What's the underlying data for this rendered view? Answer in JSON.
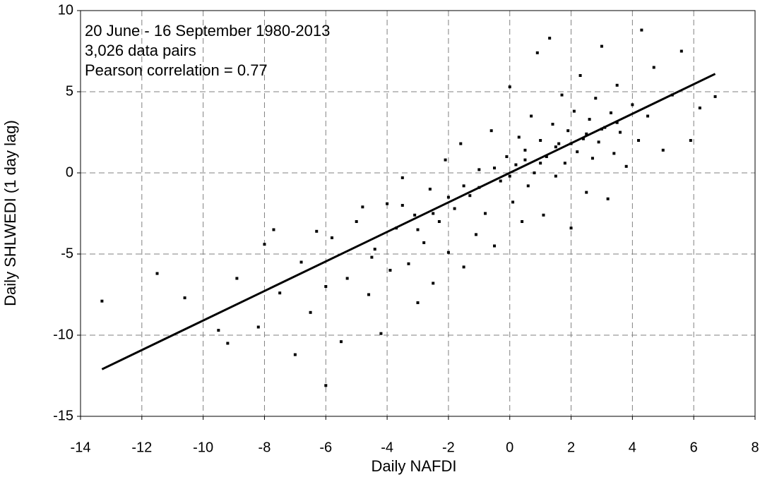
{
  "chart_data": {
    "type": "scatter",
    "annotations": [
      "20 June - 16 September 1980-2013",
      "3,026 data pairs",
      "Pearson correlation = 0.77"
    ],
    "xlabel": "Daily NAFDI",
    "ylabel": "Daily SHLWEDI (1 day lag)",
    "xlim": [
      -14,
      8
    ],
    "xticks": [
      -14,
      -12,
      -10,
      -8,
      -6,
      -4,
      -2,
      0,
      2,
      4,
      6,
      8
    ],
    "ylim": [
      -15,
      10
    ],
    "yticks": [
      -15,
      -10,
      -5,
      0,
      5,
      10
    ],
    "grid": true,
    "color": "#000000",
    "x": [
      -13.3,
      -11.5,
      -10.6,
      -9.5,
      -9.2,
      -8.9,
      -8.2,
      -8.0,
      -7.7,
      -7.5,
      -7.0,
      -6.8,
      -6.5,
      -6.3,
      -6.0,
      -6.0,
      -5.8,
      -5.5,
      -5.3,
      -5.0,
      -4.8,
      -4.6,
      -4.4,
      -4.2,
      -4.0,
      -3.9,
      -3.7,
      -3.5,
      -3.3,
      -3.1,
      -3.0,
      -2.8,
      -2.6,
      -2.5,
      -2.3,
      -2.1,
      -2.0,
      -1.8,
      -1.6,
      -1.5,
      -1.3,
      -1.1,
      -1.0,
      -0.8,
      -0.6,
      -0.5,
      -0.3,
      -0.1,
      0.0,
      0.1,
      0.2,
      0.3,
      0.4,
      0.5,
      0.6,
      0.7,
      0.8,
      0.9,
      1.0,
      1.1,
      1.2,
      1.3,
      1.4,
      1.5,
      1.6,
      1.7,
      1.8,
      1.9,
      2.0,
      2.1,
      2.2,
      2.3,
      2.4,
      2.5,
      2.6,
      2.7,
      2.8,
      2.9,
      3.0,
      3.1,
      3.2,
      3.3,
      3.4,
      3.5,
      3.6,
      3.8,
      4.0,
      4.2,
      4.3,
      4.5,
      4.7,
      5.0,
      5.3,
      5.6,
      5.9,
      6.2,
      6.7,
      -4.5,
      -3.5,
      -2.5,
      -1.5,
      -0.5,
      0.5,
      1.5,
      2.5,
      3.5,
      -3.0,
      -2.0,
      -1.0,
      0,
      1,
      2,
      3
    ],
    "y": [
      -7.9,
      -6.2,
      -7.7,
      -9.7,
      -10.5,
      -6.5,
      -9.5,
      -4.4,
      -3.5,
      -7.4,
      -11.2,
      -5.5,
      -8.6,
      -3.6,
      -13.1,
      -7.0,
      -4.0,
      -10.4,
      -6.5,
      -3.0,
      -2.1,
      -7.5,
      -4.7,
      -9.9,
      -1.9,
      -6.0,
      -3.4,
      -0.3,
      -5.6,
      -2.6,
      -8.0,
      -4.3,
      -1.0,
      -6.8,
      -3.0,
      0.8,
      -4.9,
      -2.2,
      1.8,
      -5.8,
      -1.4,
      -3.8,
      0.2,
      -2.5,
      2.6,
      -4.5,
      -0.5,
      1.0,
      5.3,
      -1.8,
      0.5,
      2.2,
      -3.0,
      1.4,
      -0.8,
      3.5,
      0.0,
      7.4,
      2.0,
      -2.6,
      1.0,
      8.3,
      3.0,
      -0.2,
      1.8,
      4.8,
      0.6,
      2.6,
      -3.4,
      3.8,
      1.3,
      6.0,
      2.1,
      -1.2,
      3.3,
      0.9,
      4.6,
      1.9,
      7.8,
      2.8,
      -1.6,
      3.7,
      1.2,
      5.4,
      2.5,
      0.4,
      4.2,
      2.0,
      8.8,
      3.5,
      6.5,
      1.4,
      4.8,
      7.5,
      2.0,
      4.0,
      4.7,
      -5.2,
      -2.0,
      -2.5,
      -0.8,
      0.3,
      0.8,
      1.6,
      2.4,
      3.1,
      -3.5,
      -1.5,
      -0.9,
      -0.2,
      0.6,
      1.8,
      2.7
    ],
    "fit": {
      "x": [
        -13.3,
        6.7
      ],
      "y": [
        -12.1,
        6.1
      ],
      "color": "#000000"
    }
  }
}
